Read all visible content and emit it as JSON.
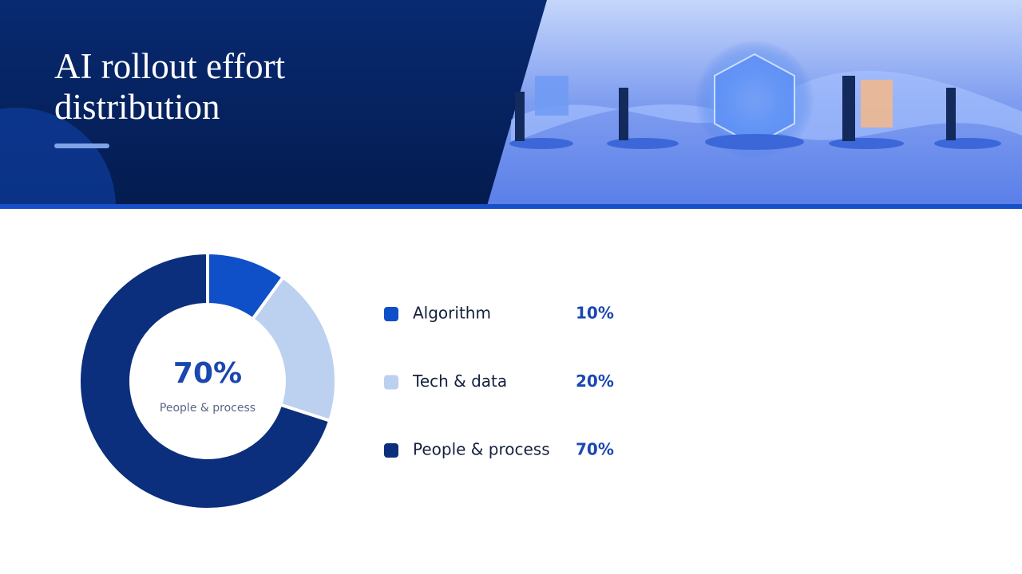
{
  "chart_data": {
    "type": "donut",
    "title": "AI rollout effort distribution",
    "categories": [
      "Algorithm",
      "Tech & data",
      "People & process"
    ],
    "values": [
      10,
      20,
      70
    ],
    "value_labels": [
      "10%",
      "20%",
      "70%"
    ],
    "colors": [
      "#0f4fc8",
      "#bcd0ef",
      "#0b2f7d"
    ]
  }
}
